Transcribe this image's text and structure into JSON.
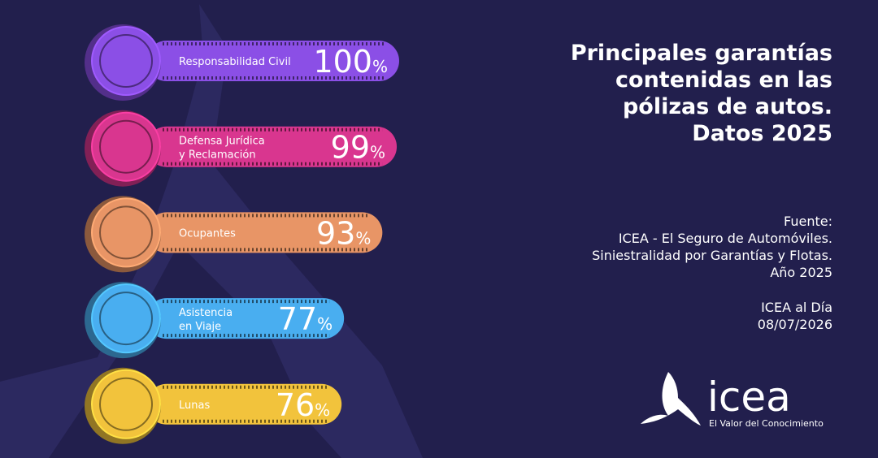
{
  "chart_data": {
    "type": "bar",
    "title": [
      "Principales garantías",
      "contenidas en las",
      "pólizas de autos.",
      "Datos 2025"
    ],
    "categories": [
      "Responsabilidad Civil",
      "Defensa Jurídica\ny Reclamación",
      "Ocupantes",
      "Asistencia\nen Viaje",
      "Lunas"
    ],
    "values": [
      100,
      99,
      93,
      77,
      76
    ],
    "value_labels": [
      "100%",
      "99%",
      "93%",
      "77%",
      "76%"
    ],
    "colors": [
      "#8b4fe6",
      "#d9368f",
      "#e89566",
      "#49aef0",
      "#f2c33c"
    ]
  },
  "source": [
    "Fuente:",
    "ICEA  - El Seguro de Automóviles.",
    "Siniestralidad por Garantías y Flotas.",
    "Año 2025"
  ],
  "publication": [
    "ICEA al Día",
    "08/07/2026"
  ],
  "logo": {
    "name": "icea",
    "tagline": "El Valor del Conocimiento"
  }
}
